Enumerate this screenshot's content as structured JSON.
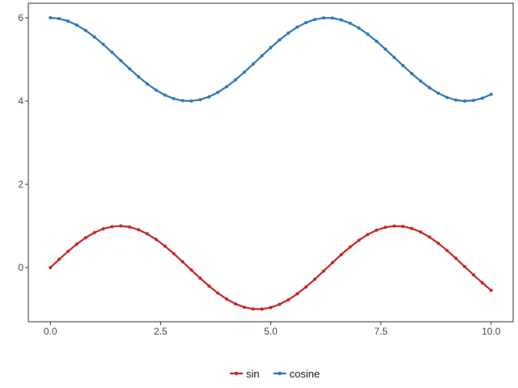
{
  "chart_data": {
    "type": "line",
    "title": "",
    "xlabel": "",
    "ylabel": "",
    "xlim": [
      -0.5,
      10.5
    ],
    "ylim": [
      -1.3,
      6.35
    ],
    "xticks": [
      0,
      2.5,
      5,
      7.5,
      10
    ],
    "xtick_labels": [
      "0.0",
      "2.5",
      "5.0",
      "7.5",
      "10.0"
    ],
    "yticks": [
      0,
      2,
      4,
      6
    ],
    "ytick_labels": [
      "0",
      "2",
      "4",
      "6"
    ],
    "grid": false,
    "legend_position": "bottom",
    "x": [
      0,
      0.2,
      0.4,
      0.6,
      0.8,
      1.0,
      1.2,
      1.4,
      1.6,
      1.8,
      2.0,
      2.2,
      2.4,
      2.6,
      2.8,
      3.0,
      3.2,
      3.4,
      3.6,
      3.8,
      4.0,
      4.2,
      4.4,
      4.6,
      4.8,
      5.0,
      5.2,
      5.4,
      5.6,
      5.8,
      6.0,
      6.2,
      6.4,
      6.6,
      6.8,
      7.0,
      7.2,
      7.4,
      7.6,
      7.8,
      8.0,
      8.2,
      8.4,
      8.6,
      8.8,
      9.0,
      9.2,
      9.4,
      9.6,
      9.8,
      10.0
    ],
    "series": [
      {
        "name": "sin",
        "color": "#c62828",
        "values": [
          0,
          0.199,
          0.389,
          0.565,
          0.717,
          0.841,
          0.932,
          0.985,
          1.0,
          0.974,
          0.909,
          0.808,
          0.675,
          0.516,
          0.335,
          0.141,
          -0.058,
          -0.256,
          -0.443,
          -0.612,
          -0.757,
          -0.872,
          -0.952,
          -0.994,
          -0.996,
          -0.959,
          -0.883,
          -0.773,
          -0.631,
          -0.465,
          -0.279,
          -0.083,
          0.117,
          0.312,
          0.494,
          0.657,
          0.794,
          0.899,
          0.968,
          0.999,
          0.989,
          0.941,
          0.855,
          0.735,
          0.585,
          0.412,
          0.223,
          0.025,
          -0.174,
          -0.366,
          -0.544
        ]
      },
      {
        "name": "cosine",
        "color": "#2e78b7",
        "values": [
          6.0,
          5.98,
          5.921,
          5.825,
          5.697,
          5.54,
          5.362,
          5.17,
          4.971,
          4.773,
          4.584,
          4.411,
          4.263,
          4.143,
          4.058,
          4.01,
          4.002,
          4.033,
          4.103,
          4.209,
          4.346,
          4.51,
          4.693,
          4.888,
          5.087,
          5.284,
          5.469,
          5.634,
          5.776,
          5.885,
          5.96,
          5.997,
          5.993,
          5.95,
          5.87,
          5.754,
          5.608,
          5.438,
          5.248,
          5.05,
          4.854,
          4.661,
          4.48,
          4.322,
          4.189,
          4.089,
          4.025,
          4.0,
          4.015,
          4.069,
          4.161
        ]
      }
    ]
  }
}
